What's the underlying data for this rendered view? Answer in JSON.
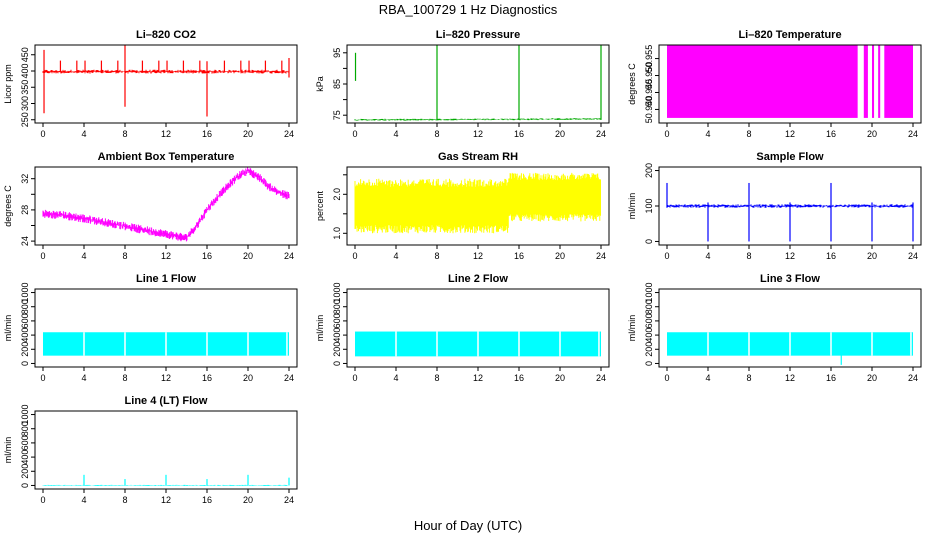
{
  "figure": {
    "title": "RBA_100729  1 Hz Diagnostics",
    "xlabel": "Hour of Day (UTC)"
  },
  "chart_data": [
    {
      "type": "line",
      "title": "Li–820 CO2",
      "ylabel": "Licor ppm",
      "color": "#ff0000",
      "xlim": [
        0,
        24
      ],
      "ylim": [
        240,
        480
      ],
      "xticks": [
        0,
        4,
        8,
        12,
        16,
        20,
        24
      ],
      "yticks": [
        250,
        300,
        350,
        400,
        450
      ],
      "ytick_labels": [
        "250",
        "300",
        "350",
        "400",
        "450"
      ],
      "baseline": [
        [
          0,
          398
        ],
        [
          24,
          398
        ]
      ],
      "band": 6,
      "spikes": [
        [
          0.1,
          270,
          465
        ],
        [
          1.7,
          398,
          432
        ],
        [
          3.3,
          398,
          432
        ],
        [
          4.1,
          398,
          432
        ],
        [
          5.7,
          398,
          432
        ],
        [
          7.3,
          398,
          432
        ],
        [
          8.0,
          290,
          480
        ],
        [
          9.7,
          398,
          432
        ],
        [
          11.3,
          398,
          432
        ],
        [
          12.1,
          398,
          432
        ],
        [
          13.7,
          398,
          432
        ],
        [
          15.3,
          398,
          432
        ],
        [
          16.0,
          260,
          430
        ],
        [
          17.7,
          398,
          432
        ],
        [
          19.3,
          398,
          432
        ],
        [
          20.1,
          398,
          432
        ],
        [
          21.7,
          398,
          432
        ],
        [
          23.3,
          398,
          432
        ],
        [
          24.0,
          380,
          440
        ]
      ]
    },
    {
      "type": "line",
      "title": "Li–820 Pressure",
      "ylabel": "kPa",
      "color": "#00aa00",
      "xlim": [
        0,
        24
      ],
      "ylim": [
        72.5,
        97.5
      ],
      "xticks": [
        0,
        4,
        8,
        12,
        16,
        20,
        24
      ],
      "yticks": [
        75,
        80,
        85,
        90,
        95
      ],
      "ytick_labels": [
        "75",
        "",
        "85",
        "",
        "95"
      ],
      "baseline": [
        [
          0,
          73.5
        ],
        [
          24,
          73.8
        ]
      ],
      "band": 0.3,
      "spikes": [
        [
          0.05,
          86,
          95
        ],
        [
          8.0,
          73.5,
          97.5
        ],
        [
          16.0,
          73.5,
          97.5
        ],
        [
          24.0,
          73.5,
          97.5
        ]
      ]
    },
    {
      "type": "area",
      "title": "Li–820 Temperature",
      "ylabel": "degrees C",
      "color": "#ff00ff",
      "xlim": [
        0,
        24
      ],
      "ylim": [
        50.936,
        50.959
      ],
      "xticks": [
        0,
        4,
        8,
        12,
        16,
        20,
        24
      ],
      "yticks": [
        50.94,
        50.945,
        50.95,
        50.955
      ],
      "ytick_labels": [
        "50.940",
        "50.945",
        "50.950",
        "50.955"
      ],
      "fill_range": [
        50.9375,
        50.959
      ],
      "fill_segments": [
        [
          0,
          18.6
        ],
        [
          19.2,
          19.6
        ],
        [
          20.0,
          20.2
        ],
        [
          20.6,
          20.8
        ],
        [
          21.2,
          24
        ]
      ]
    },
    {
      "type": "line",
      "title": "Ambient Box Temperature",
      "ylabel": "degrees C",
      "color": "#ff00ff",
      "xlim": [
        0,
        24
      ],
      "ylim": [
        23.5,
        33.5
      ],
      "xticks": [
        0,
        4,
        8,
        12,
        16,
        20,
        24
      ],
      "yticks": [
        24,
        26,
        28,
        30,
        32
      ],
      "ytick_labels": [
        "24",
        "",
        "28",
        "",
        "32"
      ],
      "points": [
        [
          0,
          27.5
        ],
        [
          2,
          27.3
        ],
        [
          4,
          26.9
        ],
        [
          6,
          26.4
        ],
        [
          8,
          25.9
        ],
        [
          10,
          25.4
        ],
        [
          12,
          24.9
        ],
        [
          14,
          24.4
        ],
        [
          15,
          26.0
        ],
        [
          16,
          28.0
        ],
        [
          17,
          29.6
        ],
        [
          18,
          31.0
        ],
        [
          19,
          32.3
        ],
        [
          20,
          33.0
        ],
        [
          21,
          32.3
        ],
        [
          22,
          31.0
        ],
        [
          23,
          30.2
        ],
        [
          24,
          29.8
        ]
      ],
      "band": 0.55
    },
    {
      "type": "line",
      "title": "Gas Stream RH",
      "ylabel": "percent",
      "color": "#ffff00",
      "xlim": [
        0,
        24
      ],
      "ylim": [
        0.7,
        2.7
      ],
      "xticks": [
        0,
        4,
        8,
        12,
        16,
        20,
        24
      ],
      "yticks": [
        1.0,
        1.5,
        2.0,
        2.5
      ],
      "ytick_labels": [
        "1.0",
        "",
        "2.0",
        ""
      ],
      "noise_bands": [
        [
          0,
          15,
          1.0,
          2.4
        ],
        [
          15,
          24,
          1.3,
          2.55
        ]
      ]
    },
    {
      "type": "line",
      "title": "Sample Flow",
      "ylabel": "ml/min",
      "color": "#0000ff",
      "xlim": [
        0,
        24
      ],
      "ylim": [
        -10,
        210
      ],
      "xticks": [
        0,
        4,
        8,
        12,
        16,
        20,
        24
      ],
      "yticks": [
        0,
        100,
        200
      ],
      "ytick_labels": [
        "0",
        "100",
        "200"
      ],
      "baseline": [
        [
          0,
          100
        ],
        [
          24,
          100
        ]
      ],
      "band": 5,
      "spikes": [
        [
          0,
          95,
          165
        ],
        [
          4.0,
          0,
          110
        ],
        [
          8.0,
          0,
          165
        ],
        [
          12.0,
          0,
          110
        ],
        [
          16.0,
          0,
          165
        ],
        [
          20.0,
          0,
          110
        ],
        [
          24.0,
          0,
          110
        ]
      ]
    },
    {
      "type": "area",
      "title": "Line 1 Flow",
      "ylabel": "ml/min",
      "color": "#00ffff",
      "xlim": [
        0,
        24
      ],
      "ylim": [
        -50,
        1050
      ],
      "xticks": [
        0,
        4,
        8,
        12,
        16,
        20,
        24
      ],
      "yticks": [
        0,
        200,
        400,
        600,
        800,
        1000
      ],
      "ytick_labels": [
        "0",
        "200",
        "400",
        "600",
        "800",
        "1000"
      ],
      "fill_range": [
        110,
        440
      ],
      "gaps": [
        4,
        8,
        12,
        16,
        20,
        23.8
      ]
    },
    {
      "type": "area",
      "title": "Line 2 Flow",
      "ylabel": "ml/min",
      "color": "#00ffff",
      "xlim": [
        0,
        24
      ],
      "ylim": [
        -50,
        1050
      ],
      "xticks": [
        0,
        4,
        8,
        12,
        16,
        20,
        24
      ],
      "yticks": [
        0,
        200,
        400,
        600,
        800,
        1000
      ],
      "ytick_labels": [
        "0",
        "200",
        "400",
        "600",
        "800",
        "1000"
      ],
      "fill_range": [
        100,
        450
      ],
      "gaps": [
        4,
        8,
        12,
        16,
        20,
        23.8
      ]
    },
    {
      "type": "area",
      "title": "Line 3 Flow",
      "ylabel": "ml/min",
      "color": "#00ffff",
      "xlim": [
        0,
        24
      ],
      "ylim": [
        -50,
        1050
      ],
      "xticks": [
        0,
        4,
        8,
        12,
        16,
        20,
        24
      ],
      "yticks": [
        0,
        200,
        400,
        600,
        800,
        1000
      ],
      "ytick_labels": [
        "0",
        "200",
        "400",
        "600",
        "800",
        "1000"
      ],
      "fill_range": [
        110,
        440
      ],
      "gaps": [
        4,
        8,
        12,
        16,
        20,
        23.8
      ],
      "spikes": [
        [
          17.0,
          -20,
          120
        ]
      ]
    },
    {
      "type": "line",
      "title": "Line 4 (LT) Flow",
      "ylabel": "ml/min",
      "color": "#00ffff",
      "xlim": [
        0,
        24
      ],
      "ylim": [
        -50,
        1050
      ],
      "xticks": [
        0,
        4,
        8,
        12,
        16,
        20,
        24
      ],
      "yticks": [
        0,
        200,
        400,
        600,
        800,
        1000
      ],
      "ytick_labels": [
        "0",
        "200",
        "400",
        "600",
        "800",
        "1000"
      ],
      "baseline": [
        [
          0,
          0
        ],
        [
          24,
          0
        ]
      ],
      "band": 8,
      "spikes": [
        [
          4,
          0,
          150
        ],
        [
          8,
          0,
          90
        ],
        [
          12,
          0,
          150
        ],
        [
          16,
          0,
          90
        ],
        [
          20,
          0,
          150
        ],
        [
          24,
          0,
          110
        ]
      ]
    }
  ]
}
